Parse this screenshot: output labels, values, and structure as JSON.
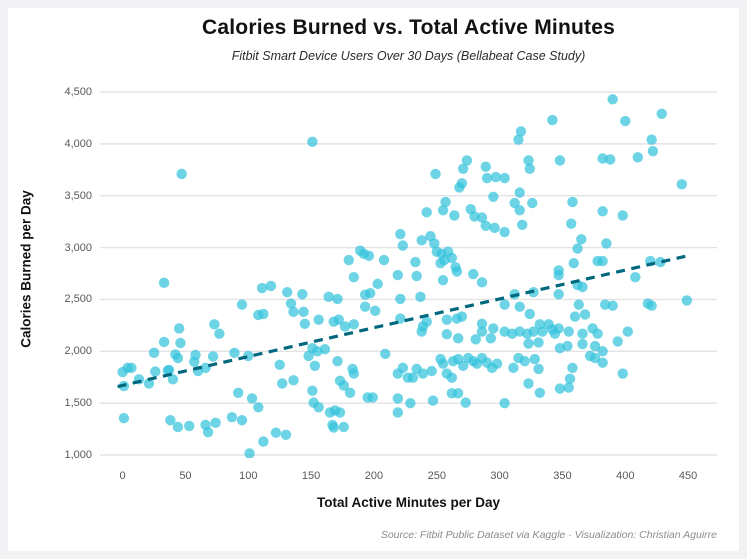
{
  "chart_data": {
    "type": "scatter",
    "title": "Calories Burned vs. Total Active Minutes",
    "subtitle": "Fitbit Smart Device Users Over 30 Days (Bellabeat Case Study)",
    "xlabel": "Total Active Minutes per Day",
    "ylabel": "Calories Burned per Day",
    "source": "Source: Fitbit Public Dataset via Kaggle · Visualization: Christian Aguirre",
    "legend": "none",
    "grid": "horizontal only",
    "colors": {
      "point": "#35C4DD",
      "point_opacity": 0.72,
      "trend": "#00687E",
      "grid": "#E3E3E5",
      "tick_text": "#595959",
      "frame": "#F2F2F4"
    },
    "axes": {
      "xlim": [
        -18,
        473
      ],
      "ylim": [
        971,
        4616
      ],
      "x_tick_values": [
        0,
        50,
        100,
        150,
        200,
        250,
        300,
        350,
        400,
        450
      ],
      "x_tick_labels": [
        "0",
        "50",
        "100",
        "150",
        "200",
        "250",
        "300",
        "350",
        "400",
        "450"
      ],
      "y_tick_values": [
        1000,
        1500,
        2000,
        2500,
        3000,
        3500,
        4000,
        4500
      ],
      "y_tick_labels": [
        "1,000",
        "1,500",
        "2,000",
        "2,500",
        "3,000",
        "3,500",
        "4,000",
        "4,500"
      ]
    },
    "trend_line": {
      "style": "dashed",
      "x1": -4,
      "y1": 1660,
      "x2": 451,
      "y2": 2925
    },
    "points": [
      [
        47,
        3710
      ],
      [
        151,
        4020
      ],
      [
        249,
        3710
      ],
      [
        274,
        3840
      ],
      [
        271,
        3760
      ],
      [
        289,
        3780
      ],
      [
        297,
        3680
      ],
      [
        290,
        3670
      ],
      [
        270,
        3620
      ],
      [
        268,
        3580
      ],
      [
        295,
        3490
      ],
      [
        257,
        3440
      ],
      [
        255,
        3360
      ],
      [
        264,
        3310
      ],
      [
        242,
        3340
      ],
      [
        277,
        3370
      ],
      [
        280,
        3300
      ],
      [
        286,
        3290
      ],
      [
        289,
        3210
      ],
      [
        296,
        3190
      ],
      [
        221,
        3130
      ],
      [
        238,
        3070
      ],
      [
        245,
        3110
      ],
      [
        223,
        3020
      ],
      [
        248,
        3040
      ],
      [
        250,
        2960
      ],
      [
        254,
        2940
      ],
      [
        259,
        2960
      ],
      [
        256,
        2880
      ],
      [
        253,
        2850
      ],
      [
        262,
        2900
      ],
      [
        266,
        2770
      ],
      [
        189,
        2970
      ],
      [
        192,
        2940
      ],
      [
        196,
        2920
      ],
      [
        180,
        2880
      ],
      [
        208,
        2880
      ],
      [
        233,
        2860
      ],
      [
        265,
        2810
      ],
      [
        390,
        4430
      ],
      [
        429,
        4290
      ],
      [
        342,
        4230
      ],
      [
        400,
        4220
      ],
      [
        317,
        4120
      ],
      [
        315,
        4040
      ],
      [
        421,
        4040
      ],
      [
        422,
        3930
      ],
      [
        382,
        3860
      ],
      [
        388,
        3850
      ],
      [
        410,
        3870
      ],
      [
        348,
        3840
      ],
      [
        323,
        3840
      ],
      [
        324,
        3760
      ],
      [
        304,
        3670
      ],
      [
        445,
        3610
      ],
      [
        316,
        3530
      ],
      [
        312,
        3430
      ],
      [
        326,
        3430
      ],
      [
        316,
        3360
      ],
      [
        304,
        3150
      ],
      [
        318,
        3220
      ],
      [
        358,
        3440
      ],
      [
        357,
        3230
      ],
      [
        382,
        3350
      ],
      [
        398,
        3310
      ],
      [
        365,
        3080
      ],
      [
        362,
        2990
      ],
      [
        385,
        3040
      ],
      [
        378,
        2870
      ],
      [
        382,
        2870
      ],
      [
        359,
        2850
      ],
      [
        347,
        2780
      ],
      [
        420,
        2870
      ],
      [
        428,
        2860
      ],
      [
        33,
        2660
      ],
      [
        111,
        2610
      ],
      [
        118,
        2630
      ],
      [
        131,
        2570
      ],
      [
        95,
        2450
      ],
      [
        108,
        2350
      ],
      [
        112,
        2360
      ],
      [
        134,
        2460
      ],
      [
        136,
        2380
      ],
      [
        45,
        2220
      ],
      [
        46,
        2080
      ],
      [
        33,
        2090
      ],
      [
        42,
        1970
      ],
      [
        73,
        2260
      ],
      [
        77,
        2170
      ],
      [
        44,
        1935
      ],
      [
        25,
        1985
      ],
      [
        4,
        1840
      ],
      [
        7,
        1840
      ],
      [
        0,
        1800
      ],
      [
        13,
        1730
      ],
      [
        1,
        1665
      ],
      [
        21,
        1690
      ],
      [
        37,
        1820
      ],
      [
        26,
        1805
      ],
      [
        36,
        1815
      ],
      [
        40,
        1730
      ],
      [
        60,
        1810
      ],
      [
        66,
        1840
      ],
      [
        72,
        1950
      ],
      [
        58,
        1965
      ],
      [
        89,
        1985
      ],
      [
        57,
        1900
      ],
      [
        100,
        1955
      ],
      [
        125,
        1870
      ],
      [
        127,
        1690
      ],
      [
        136,
        1720
      ],
      [
        92,
        1600
      ],
      [
        103,
        1545
      ],
      [
        108,
        1460
      ],
      [
        1,
        1355
      ],
      [
        38,
        1335
      ],
      [
        44,
        1270
      ],
      [
        53,
        1280
      ],
      [
        66,
        1290
      ],
      [
        74,
        1310
      ],
      [
        68,
        1220
      ],
      [
        87,
        1365
      ],
      [
        95,
        1335
      ],
      [
        101,
        1015
      ],
      [
        112,
        1130
      ],
      [
        122,
        1215
      ],
      [
        130,
        1195
      ],
      [
        184,
        2715
      ],
      [
        219,
        2735
      ],
      [
        234,
        2725
      ],
      [
        255,
        2685
      ],
      [
        279,
        2745
      ],
      [
        286,
        2665
      ],
      [
        143,
        2550
      ],
      [
        164,
        2525
      ],
      [
        171,
        2505
      ],
      [
        193,
        2545
      ],
      [
        197,
        2560
      ],
      [
        203,
        2650
      ],
      [
        221,
        2505
      ],
      [
        237,
        2525
      ],
      [
        193,
        2430
      ],
      [
        201,
        2390
      ],
      [
        144,
        2380
      ],
      [
        145,
        2265
      ],
      [
        156,
        2305
      ],
      [
        168,
        2285
      ],
      [
        172,
        2305
      ],
      [
        184,
        2260
      ],
      [
        177,
        2240
      ],
      [
        221,
        2315
      ],
      [
        239,
        2240
      ],
      [
        242,
        2285
      ],
      [
        258,
        2165
      ],
      [
        238,
        2190
      ],
      [
        258,
        2305
      ],
      [
        266,
        2315
      ],
      [
        270,
        2335
      ],
      [
        286,
        2265
      ],
      [
        295,
        2220
      ],
      [
        286,
        2190
      ],
      [
        293,
        2125
      ],
      [
        281,
        2115
      ],
      [
        267,
        2125
      ],
      [
        151,
        2030
      ],
      [
        155,
        2000
      ],
      [
        161,
        2020
      ],
      [
        148,
        1955
      ],
      [
        171,
        1905
      ],
      [
        153,
        1860
      ],
      [
        183,
        1830
      ],
      [
        184,
        1785
      ],
      [
        173,
        1715
      ],
      [
        176,
        1670
      ],
      [
        181,
        1600
      ],
      [
        209,
        1975
      ],
      [
        223,
        1840
      ],
      [
        219,
        1785
      ],
      [
        227,
        1745
      ],
      [
        231,
        1745
      ],
      [
        234,
        1830
      ],
      [
        239,
        1785
      ],
      [
        246,
        1810
      ],
      [
        253,
        1925
      ],
      [
        255,
        1880
      ],
      [
        263,
        1905
      ],
      [
        267,
        1925
      ],
      [
        271,
        1860
      ],
      [
        275,
        1935
      ],
      [
        279,
        1905
      ],
      [
        282,
        1880
      ],
      [
        286,
        1935
      ],
      [
        290,
        1890
      ],
      [
        294,
        1840
      ],
      [
        298,
        1880
      ],
      [
        258,
        1785
      ],
      [
        262,
        1745
      ],
      [
        151,
        1620
      ],
      [
        152,
        1505
      ],
      [
        156,
        1460
      ],
      [
        165,
        1410
      ],
      [
        169,
        1430
      ],
      [
        173,
        1410
      ],
      [
        167,
        1290
      ],
      [
        176,
        1270
      ],
      [
        168,
        1265
      ],
      [
        195,
        1555
      ],
      [
        199,
        1555
      ],
      [
        219,
        1545
      ],
      [
        229,
        1500
      ],
      [
        219,
        1410
      ],
      [
        247,
        1525
      ],
      [
        262,
        1595
      ],
      [
        267,
        1595
      ],
      [
        273,
        1505
      ],
      [
        347,
        2735
      ],
      [
        362,
        2640
      ],
      [
        366,
        2620
      ],
      [
        347,
        2550
      ],
      [
        408,
        2715
      ],
      [
        312,
        2550
      ],
      [
        327,
        2570
      ],
      [
        304,
        2450
      ],
      [
        316,
        2430
      ],
      [
        363,
        2450
      ],
      [
        384,
        2450
      ],
      [
        390,
        2440
      ],
      [
        418,
        2460
      ],
      [
        421,
        2440
      ],
      [
        449,
        2490
      ],
      [
        324,
        2360
      ],
      [
        360,
        2335
      ],
      [
        368,
        2355
      ],
      [
        304,
        2190
      ],
      [
        310,
        2170
      ],
      [
        316,
        2190
      ],
      [
        322,
        2170
      ],
      [
        327,
        2190
      ],
      [
        332,
        2260
      ],
      [
        334,
        2190
      ],
      [
        339,
        2260
      ],
      [
        342,
        2210
      ],
      [
        344,
        2170
      ],
      [
        347,
        2220
      ],
      [
        355,
        2190
      ],
      [
        366,
        2170
      ],
      [
        374,
        2220
      ],
      [
        378,
        2170
      ],
      [
        402,
        2190
      ],
      [
        323,
        2075
      ],
      [
        331,
        2085
      ],
      [
        348,
        2030
      ],
      [
        354,
        2050
      ],
      [
        366,
        2070
      ],
      [
        376,
        2050
      ],
      [
        394,
        2095
      ],
      [
        382,
        2000
      ],
      [
        372,
        1955
      ],
      [
        376,
        1935
      ],
      [
        382,
        1890
      ],
      [
        315,
        1935
      ],
      [
        320,
        1905
      ],
      [
        328,
        1925
      ],
      [
        311,
        1840
      ],
      [
        331,
        1830
      ],
      [
        358,
        1840
      ],
      [
        398,
        1785
      ],
      [
        323,
        1690
      ],
      [
        332,
        1600
      ],
      [
        348,
        1640
      ],
      [
        355,
        1650
      ],
      [
        356,
        1735
      ],
      [
        304,
        1500
      ]
    ]
  }
}
